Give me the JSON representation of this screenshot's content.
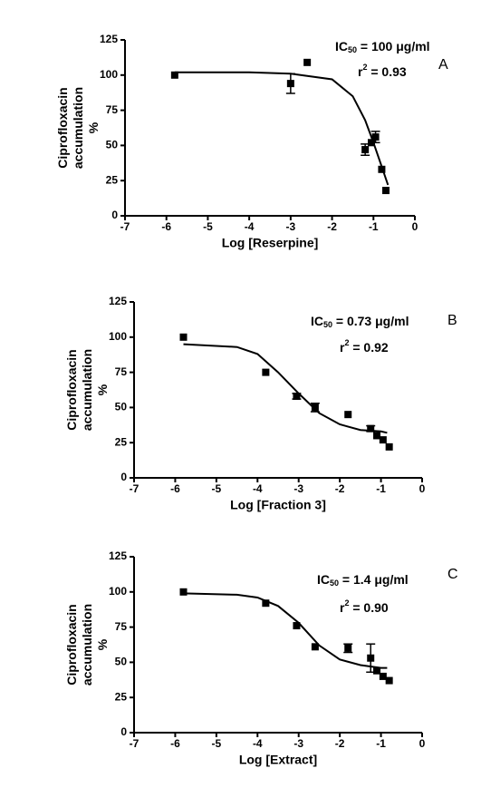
{
  "chart_data": [
    {
      "type": "scatter",
      "panel": "A",
      "x_label": "Log [Reserpine]",
      "y_label": [
        "Ciprofloxacin",
        "accumulation",
        "%"
      ],
      "ic50": [
        "IC",
        "50",
        " = 100 μg/ml"
      ],
      "r2": [
        "r",
        "2",
        " = 0.93"
      ],
      "x": [
        -5.8,
        -3.0,
        -2.6,
        -1.2,
        -1.05,
        -0.95,
        -0.8,
        -0.7
      ],
      "values": [
        100,
        94,
        109,
        47,
        52,
        56,
        33,
        18
      ],
      "errors": [
        null,
        7,
        null,
        4,
        null,
        4,
        null,
        null
      ],
      "curve": {
        "x": [
          -5.8,
          -4,
          -3,
          -2,
          -1.5,
          -1.2,
          -1,
          -0.8,
          -0.65
        ],
        "values": [
          102,
          102,
          101,
          97,
          85,
          68,
          52,
          35,
          22
        ]
      },
      "color": "#000000",
      "xlim": [
        -7,
        0
      ],
      "xticks": [
        -7,
        -6,
        -5,
        -4,
        -3,
        -2,
        -1,
        0
      ],
      "ylim": [
        0,
        125
      ],
      "yticks": [
        0,
        25,
        50,
        75,
        100,
        125
      ],
      "grid": false
    },
    {
      "type": "scatter",
      "panel": "B",
      "x_label": "Log [Fraction 3]",
      "y_label": [
        "Ciprofloxacin",
        "accumulation",
        "%"
      ],
      "ic50": [
        "IC",
        "50",
        " = 0.73 μg/ml"
      ],
      "r2": [
        "r",
        "2",
        " = 0.92"
      ],
      "x": [
        -5.8,
        -3.8,
        -3.05,
        -2.6,
        -1.8,
        -1.25,
        -1.1,
        -0.95,
        -0.8
      ],
      "values": [
        100,
        75,
        58,
        50,
        45,
        35,
        30,
        27,
        22
      ],
      "errors": [
        null,
        null,
        2,
        3,
        null,
        2,
        null,
        null,
        null
      ],
      "curve": {
        "x": [
          -5.8,
          -4.5,
          -4,
          -3.5,
          -3,
          -2.5,
          -2,
          -1.5,
          -1,
          -0.85
        ],
        "values": [
          95,
          93,
          88,
          75,
          60,
          46,
          38,
          34,
          33,
          32
        ]
      },
      "color": "#000000",
      "xlim": [
        -7,
        0
      ],
      "xticks": [
        -7,
        -6,
        -5,
        -4,
        -3,
        -2,
        -1,
        0
      ],
      "ylim": [
        0,
        125
      ],
      "yticks": [
        0,
        25,
        50,
        75,
        100,
        125
      ],
      "grid": false
    },
    {
      "type": "scatter",
      "panel": "C",
      "x_label": "Log [Extract]",
      "y_label": [
        "Ciprofloxacin",
        "accumulation",
        "%"
      ],
      "ic50": [
        "IC",
        "50",
        " = 1.4 μg/ml"
      ],
      "r2": [
        "r",
        "2",
        " = 0.90"
      ],
      "x": [
        -5.8,
        -3.8,
        -3.05,
        -2.6,
        -1.8,
        -1.25,
        -1.1,
        -0.95,
        -0.8
      ],
      "values": [
        100,
        92,
        76,
        61,
        60,
        53,
        44,
        40,
        37
      ],
      "errors": [
        null,
        null,
        null,
        null,
        3,
        10,
        null,
        null,
        null
      ],
      "curve": {
        "x": [
          -5.8,
          -4.5,
          -4,
          -3.5,
          -3,
          -2.5,
          -2,
          -1.5,
          -1,
          -0.85
        ],
        "values": [
          99,
          98,
          96,
          90,
          78,
          62,
          52,
          48,
          46,
          46
        ]
      },
      "color": "#000000",
      "xlim": [
        -7,
        0
      ],
      "xticks": [
        -7,
        -6,
        -5,
        -4,
        -3,
        -2,
        -1,
        0
      ],
      "ylim": [
        0,
        125
      ],
      "yticks": [
        0,
        25,
        50,
        75,
        100,
        125
      ],
      "grid": false
    }
  ]
}
